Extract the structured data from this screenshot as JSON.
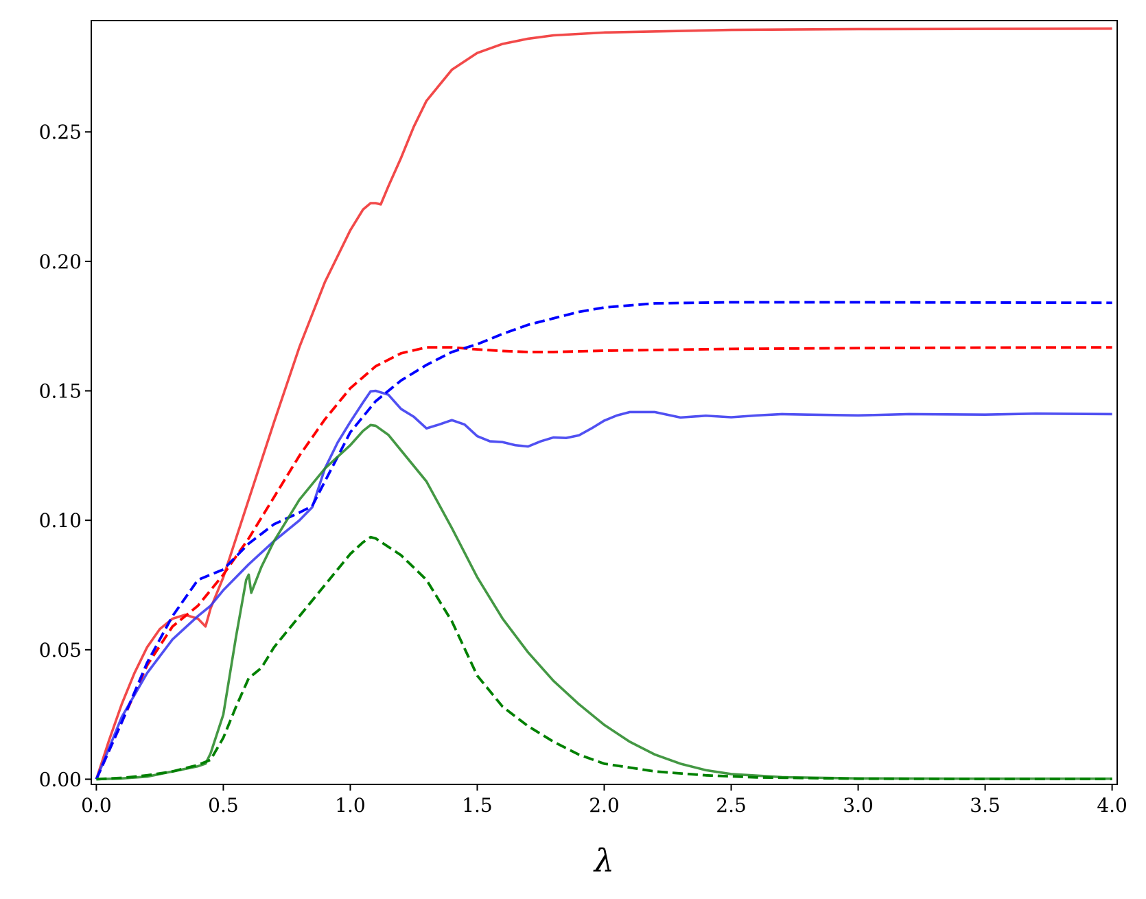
{
  "chart_data": {
    "type": "line",
    "title": "",
    "xlabel": "λ",
    "ylabel": "",
    "xlim": [
      -0.02,
      4.02
    ],
    "ylim": [
      -0.002,
      0.293
    ],
    "grid": false,
    "legend": "none",
    "x_ticks": [
      0.0,
      0.5,
      1.0,
      1.5,
      2.0,
      2.5,
      3.0,
      3.5,
      4.0
    ],
    "x_tick_labels": [
      "0.0",
      "0.5",
      "1.0",
      "1.5",
      "2.0",
      "2.5",
      "3.0",
      "3.5",
      "4.0"
    ],
    "y_ticks": [
      0.0,
      0.05,
      0.1,
      0.15,
      0.2,
      0.25
    ],
    "y_tick_labels": [
      "0.00",
      "0.05",
      "0.10",
      "0.15",
      "0.20",
      "0.25"
    ],
    "series": [
      {
        "color": "#f03030",
        "style": "solid",
        "points": [
          [
            0.0,
            0.0
          ],
          [
            0.05,
            0.015
          ],
          [
            0.1,
            0.029
          ],
          [
            0.15,
            0.041
          ],
          [
            0.2,
            0.051
          ],
          [
            0.25,
            0.058
          ],
          [
            0.3,
            0.062
          ],
          [
            0.35,
            0.0635
          ],
          [
            0.4,
            0.062
          ],
          [
            0.43,
            0.059
          ],
          [
            0.45,
            0.066
          ],
          [
            0.5,
            0.078
          ],
          [
            0.6,
            0.108
          ],
          [
            0.7,
            0.138
          ],
          [
            0.8,
            0.167
          ],
          [
            0.9,
            0.192
          ],
          [
            1.0,
            0.212
          ],
          [
            1.05,
            0.22
          ],
          [
            1.08,
            0.2225
          ],
          [
            1.1,
            0.2225
          ],
          [
            1.12,
            0.222
          ],
          [
            1.15,
            0.229
          ],
          [
            1.2,
            0.24
          ],
          [
            1.25,
            0.252
          ],
          [
            1.3,
            0.262
          ],
          [
            1.4,
            0.274
          ],
          [
            1.5,
            0.2805
          ],
          [
            1.6,
            0.284
          ],
          [
            1.7,
            0.286
          ],
          [
            1.8,
            0.2873
          ],
          [
            2.0,
            0.2884
          ],
          [
            2.5,
            0.2894
          ],
          [
            3.0,
            0.2897
          ],
          [
            3.5,
            0.2898
          ],
          [
            4.0,
            0.2899
          ]
        ]
      },
      {
        "color": "#ff0000",
        "style": "dashed",
        "points": [
          [
            0.0,
            0.0
          ],
          [
            0.1,
            0.022
          ],
          [
            0.2,
            0.044
          ],
          [
            0.3,
            0.059
          ],
          [
            0.4,
            0.067
          ],
          [
            0.5,
            0.079
          ],
          [
            0.6,
            0.093
          ],
          [
            0.7,
            0.109
          ],
          [
            0.8,
            0.125
          ],
          [
            0.9,
            0.139
          ],
          [
            1.0,
            0.151
          ],
          [
            1.1,
            0.1595
          ],
          [
            1.2,
            0.1645
          ],
          [
            1.3,
            0.1668
          ],
          [
            1.4,
            0.1668
          ],
          [
            1.5,
            0.166
          ],
          [
            1.6,
            0.1654
          ],
          [
            1.7,
            0.165
          ],
          [
            1.8,
            0.165
          ],
          [
            2.0,
            0.1655
          ],
          [
            2.5,
            0.1662
          ],
          [
            3.0,
            0.1665
          ],
          [
            3.5,
            0.1667
          ],
          [
            4.0,
            0.1668
          ]
        ]
      },
      {
        "color": "#3838f0",
        "style": "solid",
        "points": [
          [
            0.0,
            0.0
          ],
          [
            0.1,
            0.024
          ],
          [
            0.2,
            0.041
          ],
          [
            0.3,
            0.054
          ],
          [
            0.4,
            0.063
          ],
          [
            0.45,
            0.067
          ],
          [
            0.5,
            0.073
          ],
          [
            0.6,
            0.083
          ],
          [
            0.7,
            0.092
          ],
          [
            0.8,
            0.1
          ],
          [
            0.85,
            0.105
          ],
          [
            0.9,
            0.12
          ],
          [
            0.95,
            0.13
          ],
          [
            1.0,
            0.138
          ],
          [
            1.05,
            0.1455
          ],
          [
            1.08,
            0.1498
          ],
          [
            1.1,
            0.15
          ],
          [
            1.15,
            0.1485
          ],
          [
            1.2,
            0.143
          ],
          [
            1.25,
            0.14
          ],
          [
            1.3,
            0.1355
          ],
          [
            1.35,
            0.137
          ],
          [
            1.4,
            0.1387
          ],
          [
            1.45,
            0.137
          ],
          [
            1.5,
            0.1325
          ],
          [
            1.55,
            0.1305
          ],
          [
            1.6,
            0.1302
          ],
          [
            1.65,
            0.129
          ],
          [
            1.7,
            0.1285
          ],
          [
            1.75,
            0.1305
          ],
          [
            1.8,
            0.132
          ],
          [
            1.85,
            0.1318
          ],
          [
            1.9,
            0.1328
          ],
          [
            1.95,
            0.1355
          ],
          [
            2.0,
            0.1385
          ],
          [
            2.05,
            0.1405
          ],
          [
            2.1,
            0.1418
          ],
          [
            2.2,
            0.1418
          ],
          [
            2.3,
            0.1397
          ],
          [
            2.4,
            0.1404
          ],
          [
            2.5,
            0.1398
          ],
          [
            2.6,
            0.1405
          ],
          [
            2.7,
            0.141
          ],
          [
            2.8,
            0.1408
          ],
          [
            3.0,
            0.1405
          ],
          [
            3.2,
            0.141
          ],
          [
            3.5,
            0.1408
          ],
          [
            3.7,
            0.1412
          ],
          [
            4.0,
            0.141
          ]
        ]
      },
      {
        "color": "#0000ff",
        "style": "dashed",
        "points": [
          [
            0.0,
            0.0
          ],
          [
            0.1,
            0.022
          ],
          [
            0.2,
            0.045
          ],
          [
            0.3,
            0.063
          ],
          [
            0.4,
            0.077
          ],
          [
            0.5,
            0.081
          ],
          [
            0.6,
            0.091
          ],
          [
            0.7,
            0.0985
          ],
          [
            0.8,
            0.103
          ],
          [
            0.85,
            0.1055
          ],
          [
            0.9,
            0.115
          ],
          [
            1.0,
            0.134
          ],
          [
            1.1,
            0.146
          ],
          [
            1.2,
            0.154
          ],
          [
            1.3,
            0.16
          ],
          [
            1.4,
            0.165
          ],
          [
            1.5,
            0.168
          ],
          [
            1.6,
            0.172
          ],
          [
            1.7,
            0.1755
          ],
          [
            1.8,
            0.178
          ],
          [
            1.9,
            0.1805
          ],
          [
            2.0,
            0.1822
          ],
          [
            2.2,
            0.1838
          ],
          [
            2.5,
            0.1842
          ],
          [
            3.0,
            0.1842
          ],
          [
            3.5,
            0.1841
          ],
          [
            4.0,
            0.184
          ]
        ]
      },
      {
        "color": "#2a8a2a",
        "style": "solid",
        "points": [
          [
            0.0,
            0.0
          ],
          [
            0.1,
            0.0003
          ],
          [
            0.2,
            0.001
          ],
          [
            0.3,
            0.003
          ],
          [
            0.4,
            0.005
          ],
          [
            0.43,
            0.006
          ],
          [
            0.45,
            0.01
          ],
          [
            0.5,
            0.025
          ],
          [
            0.55,
            0.055
          ],
          [
            0.59,
            0.077
          ],
          [
            0.6,
            0.079
          ],
          [
            0.61,
            0.072
          ],
          [
            0.65,
            0.082
          ],
          [
            0.7,
            0.092
          ],
          [
            0.8,
            0.108
          ],
          [
            0.9,
            0.12
          ],
          [
            1.0,
            0.129
          ],
          [
            1.05,
            0.1345
          ],
          [
            1.08,
            0.1368
          ],
          [
            1.1,
            0.1365
          ],
          [
            1.15,
            0.133
          ],
          [
            1.2,
            0.127
          ],
          [
            1.3,
            0.115
          ],
          [
            1.4,
            0.097
          ],
          [
            1.5,
            0.078
          ],
          [
            1.6,
            0.062
          ],
          [
            1.7,
            0.049
          ],
          [
            1.8,
            0.038
          ],
          [
            1.9,
            0.029
          ],
          [
            2.0,
            0.021
          ],
          [
            2.1,
            0.0145
          ],
          [
            2.2,
            0.0095
          ],
          [
            2.3,
            0.006
          ],
          [
            2.4,
            0.0035
          ],
          [
            2.5,
            0.002
          ],
          [
            2.7,
            0.0008
          ],
          [
            3.0,
            0.0003
          ],
          [
            3.5,
            0.0002
          ],
          [
            4.0,
            0.0002
          ]
        ]
      },
      {
        "color": "#008000",
        "style": "dashed",
        "points": [
          [
            0.0,
            0.0
          ],
          [
            0.1,
            0.0005
          ],
          [
            0.2,
            0.0015
          ],
          [
            0.3,
            0.003
          ],
          [
            0.4,
            0.0055
          ],
          [
            0.45,
            0.0075
          ],
          [
            0.5,
            0.016
          ],
          [
            0.55,
            0.028
          ],
          [
            0.6,
            0.039
          ],
          [
            0.65,
            0.043
          ],
          [
            0.7,
            0.051
          ],
          [
            0.8,
            0.063
          ],
          [
            0.9,
            0.075
          ],
          [
            1.0,
            0.087
          ],
          [
            1.05,
            0.0915
          ],
          [
            1.08,
            0.0935
          ],
          [
            1.1,
            0.093
          ],
          [
            1.2,
            0.0865
          ],
          [
            1.3,
            0.077
          ],
          [
            1.4,
            0.061
          ],
          [
            1.5,
            0.04
          ],
          [
            1.6,
            0.028
          ],
          [
            1.7,
            0.0205
          ],
          [
            1.8,
            0.0145
          ],
          [
            1.9,
            0.0095
          ],
          [
            2.0,
            0.006
          ],
          [
            2.2,
            0.003
          ],
          [
            2.4,
            0.0015
          ],
          [
            2.6,
            0.0007
          ],
          [
            3.0,
            0.0002
          ],
          [
            3.5,
            0.0001
          ],
          [
            4.0,
            0.0001
          ]
        ]
      }
    ]
  }
}
